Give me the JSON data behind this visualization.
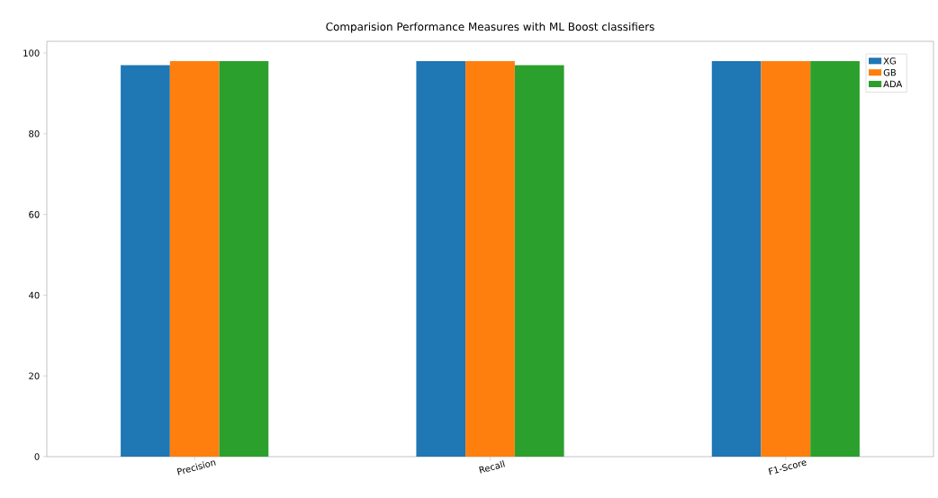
{
  "chart_data": {
    "type": "bar",
    "title": "Comparision Performance Measures with ML Boost classifiers",
    "categories": [
      "Precision",
      "Recall",
      "F1-Score"
    ],
    "series": [
      {
        "name": "XG",
        "color": "#1f77b4",
        "values": [
          97,
          98,
          98
        ]
      },
      {
        "name": "GB",
        "color": "#ff7f0e",
        "values": [
          98,
          98,
          98
        ]
      },
      {
        "name": "ADA",
        "color": "#2ca02c",
        "values": [
          98,
          97,
          98
        ]
      }
    ],
    "ylim": [
      0,
      102.9
    ],
    "yticks": [
      0,
      20,
      40,
      60,
      80,
      100
    ],
    "legend": "top right",
    "grid": false
  }
}
